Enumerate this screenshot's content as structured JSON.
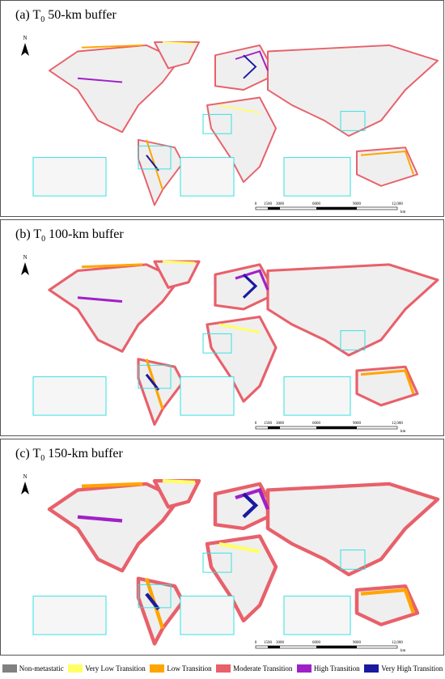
{
  "panels": [
    {
      "title": {
        "prefix": "(a) T",
        "sub": "0",
        "suffix": " 50-km buffer"
      },
      "north": "N",
      "scale": {
        "labels": [
          "0",
          "1500",
          "3000",
          "6000",
          "9000",
          "12,000"
        ],
        "unit": "km"
      }
    },
    {
      "title": {
        "prefix": "(b) T",
        "sub": "0",
        "suffix": " 100-km buffer"
      },
      "north": "N",
      "scale": {
        "labels": [
          "0",
          "1500",
          "3000",
          "6000",
          "9000",
          "12,000"
        ],
        "unit": "km"
      }
    },
    {
      "title": {
        "prefix": "(c) T",
        "sub": "0",
        "suffix": " 150-km buffer"
      },
      "north": "N",
      "scale": {
        "labels": [
          "0",
          "1500",
          "3000",
          "6000",
          "9000",
          "12,000"
        ],
        "unit": "km"
      }
    }
  ],
  "legend": [
    {
      "label": "Non-metastatic",
      "color": "#808080"
    },
    {
      "label": "Very Low Transition",
      "color": "#ffff66"
    },
    {
      "label": "Low Transition",
      "color": "#ffa500"
    },
    {
      "label": "Moderate Transition",
      "color": "#e8606a"
    },
    {
      "label": "High Transition",
      "color": "#a020c8"
    },
    {
      "label": "Very High Transition",
      "color": "#1a1aa0"
    }
  ]
}
